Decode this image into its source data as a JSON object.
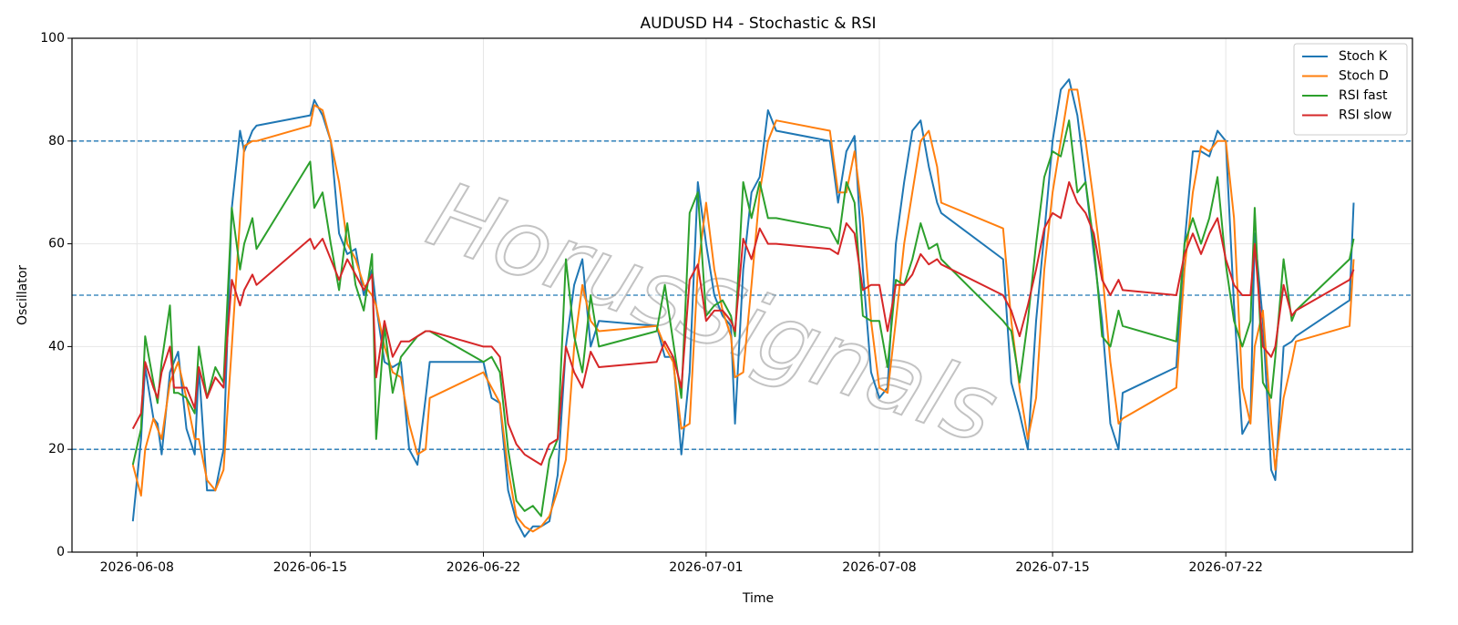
{
  "chart_data": {
    "type": "line",
    "title": "AUDUSD H4 - Stochastic & RSI",
    "xlabel": "Time",
    "ylabel": "Oscillator",
    "watermark": "HorusSignals",
    "xlim": [
      "2026-06-05T09:00",
      "2026-07-29T13:00"
    ],
    "xticks": [
      "2026-06-08",
      "2026-06-15",
      "2026-06-22",
      "2026-07-01",
      "2026-07-08",
      "2026-07-15",
      "2026-07-22"
    ],
    "ylim": [
      0,
      100
    ],
    "yticks": [
      0,
      20,
      40,
      60,
      80,
      100
    ],
    "grid": true,
    "legend": "upper right",
    "hlines": [
      20,
      50,
      80
    ],
    "hline_color": "#1f77b4",
    "x": [
      "2026-06-07T20:00",
      "2026-06-08T04:00",
      "2026-06-08T08:00",
      "2026-06-08T16:00",
      "2026-06-08T20:00",
      "2026-06-09T00:00",
      "2026-06-09T08:00",
      "2026-06-09T12:00",
      "2026-06-09T16:00",
      "2026-06-10T00:00",
      "2026-06-10T08:00",
      "2026-06-10T12:00",
      "2026-06-10T20:00",
      "2026-06-11T04:00",
      "2026-06-11T12:00",
      "2026-06-11T20:00",
      "2026-06-12T04:00",
      "2026-06-12T08:00",
      "2026-06-12T16:00",
      "2026-06-12T20:00",
      "2026-06-15T00:00",
      "2026-06-15T04:00",
      "2026-06-15T12:00",
      "2026-06-15T20:00",
      "2026-06-16T04:00",
      "2026-06-16T12:00",
      "2026-06-16T20:00",
      "2026-06-17T04:00",
      "2026-06-17T12:00",
      "2026-06-17T16:00",
      "2026-06-18T00:00",
      "2026-06-18T08:00",
      "2026-06-18T16:00",
      "2026-06-19T00:00",
      "2026-06-19T08:00",
      "2026-06-19T16:00",
      "2026-06-19T20:00",
      "2026-06-22T00:00",
      "2026-06-22T08:00",
      "2026-06-22T16:00",
      "2026-06-23T00:00",
      "2026-06-23T08:00",
      "2026-06-23T16:00",
      "2026-06-24T00:00",
      "2026-06-24T08:00",
      "2026-06-24T16:00",
      "2026-06-25T00:00",
      "2026-06-25T08:00",
      "2026-06-25T16:00",
      "2026-06-26T00:00",
      "2026-06-26T08:00",
      "2026-06-26T16:00",
      "2026-06-29T00:00",
      "2026-06-29T08:00",
      "2026-06-29T16:00",
      "2026-06-30T00:00",
      "2026-06-30T08:00",
      "2026-06-30T16:00",
      "2026-07-01T00:00",
      "2026-07-01T08:00",
      "2026-07-01T16:00",
      "2026-07-02T00:00",
      "2026-07-02T04:00",
      "2026-07-02T12:00",
      "2026-07-02T20:00",
      "2026-07-03T04:00",
      "2026-07-03T12:00",
      "2026-07-03T20:00",
      "2026-07-06T00:00",
      "2026-07-06T08:00",
      "2026-07-06T16:00",
      "2026-07-07T00:00",
      "2026-07-07T08:00",
      "2026-07-07T16:00",
      "2026-07-08T00:00",
      "2026-07-08T08:00",
      "2026-07-08T16:00",
      "2026-07-09T00:00",
      "2026-07-09T08:00",
      "2026-07-09T16:00",
      "2026-07-10T00:00",
      "2026-07-10T08:00",
      "2026-07-10T12:00",
      "2026-07-13T00:00",
      "2026-07-13T08:00",
      "2026-07-13T16:00",
      "2026-07-14T00:00",
      "2026-07-14T08:00",
      "2026-07-14T16:00",
      "2026-07-15T00:00",
      "2026-07-15T08:00",
      "2026-07-15T16:00",
      "2026-07-16T00:00",
      "2026-07-16T08:00",
      "2026-07-16T16:00",
      "2026-07-17T00:00",
      "2026-07-17T08:00",
      "2026-07-17T16:00",
      "2026-07-17T20:00",
      "2026-07-20T00:00",
      "2026-07-20T08:00",
      "2026-07-20T16:00",
      "2026-07-21T00:00",
      "2026-07-21T08:00",
      "2026-07-21T16:00",
      "2026-07-22T00:00",
      "2026-07-22T08:00",
      "2026-07-22T16:00",
      "2026-07-23T00:00",
      "2026-07-23T04:00",
      "2026-07-23T12:00",
      "2026-07-23T20:00",
      "2026-07-24T00:00",
      "2026-07-24T08:00",
      "2026-07-24T16:00",
      "2026-07-24T20:00",
      "2026-07-27T00:00",
      "2026-07-27T04:00"
    ],
    "series": [
      {
        "name": "Stoch K",
        "color": "#1f77b4",
        "values": [
          6,
          22,
          36,
          26,
          25,
          19,
          35,
          37,
          39,
          24,
          19,
          36,
          12,
          12,
          20,
          67,
          82,
          78,
          82,
          83,
          85,
          88,
          85,
          80,
          62,
          58,
          59,
          50,
          55,
          48,
          37,
          36,
          37,
          20,
          17,
          30,
          37,
          37,
          30,
          29,
          12,
          6,
          3,
          5,
          5,
          6,
          15,
          40,
          52,
          57,
          40,
          45,
          44,
          38,
          38,
          19,
          35,
          72,
          60,
          50,
          46,
          44,
          25,
          55,
          70,
          73,
          86,
          82,
          80,
          68,
          78,
          81,
          55,
          35,
          30,
          32,
          60,
          72,
          82,
          84,
          75,
          68,
          66,
          57,
          33,
          27,
          20,
          45,
          62,
          80,
          90,
          92,
          85,
          72,
          58,
          45,
          25,
          20,
          31,
          36,
          60,
          78,
          78,
          77,
          82,
          80,
          48,
          23,
          26,
          62,
          45,
          16,
          14,
          40,
          41,
          42,
          49,
          68
        ]
      },
      {
        "name": "Stoch D",
        "color": "#ff7f0e",
        "values": [
          17,
          11,
          20,
          26,
          24,
          22,
          33,
          35,
          37,
          30,
          22,
          22,
          14,
          12,
          16,
          40,
          65,
          79,
          80,
          80,
          83,
          87,
          86,
          80,
          72,
          60,
          57,
          52,
          50,
          48,
          40,
          35,
          34,
          25,
          19,
          20,
          30,
          35,
          32,
          29,
          16,
          7,
          5,
          4,
          5,
          7,
          12,
          18,
          40,
          52,
          45,
          43,
          44,
          40,
          37,
          24,
          25,
          55,
          68,
          55,
          47,
          42,
          34,
          35,
          52,
          70,
          80,
          84,
          82,
          70,
          70,
          78,
          65,
          45,
          32,
          31,
          45,
          60,
          70,
          80,
          82,
          75,
          68,
          63,
          45,
          32,
          22,
          30,
          55,
          70,
          80,
          90,
          90,
          80,
          68,
          55,
          37,
          25,
          26,
          32,
          55,
          70,
          79,
          78,
          80,
          80,
          65,
          32,
          25,
          40,
          47,
          25,
          16,
          30,
          37,
          41,
          44,
          57
        ]
      },
      {
        "name": "RSI fast",
        "color": "#2ca02c",
        "values": [
          17,
          24,
          42,
          33,
          29,
          37,
          48,
          31,
          31,
          30,
          27,
          40,
          30,
          36,
          33,
          67,
          55,
          60,
          65,
          59,
          76,
          67,
          70,
          60,
          51,
          64,
          52,
          47,
          58,
          22,
          44,
          31,
          38,
          40,
          42,
          43,
          43,
          37,
          38,
          35,
          20,
          10,
          8,
          9,
          7,
          18,
          22,
          57,
          42,
          35,
          50,
          40,
          43,
          52,
          41,
          30,
          66,
          70,
          46,
          48,
          49,
          46,
          42,
          72,
          65,
          72,
          65,
          65,
          63,
          60,
          72,
          68,
          46,
          45,
          45,
          36,
          53,
          52,
          57,
          64,
          59,
          60,
          57,
          45,
          43,
          33,
          45,
          60,
          73,
          78,
          77,
          84,
          70,
          72,
          60,
          42,
          40,
          47,
          44,
          41,
          60,
          65,
          60,
          65,
          73,
          56,
          45,
          40,
          45,
          67,
          33,
          30,
          38,
          57,
          45,
          47,
          57,
          61
        ]
      },
      {
        "name": "RSI slow",
        "color": "#d62728",
        "values": [
          24,
          27,
          37,
          32,
          30,
          35,
          40,
          32,
          32,
          32,
          28,
          36,
          30,
          34,
          32,
          53,
          48,
          51,
          54,
          52,
          61,
          59,
          61,
          57,
          53,
          57,
          54,
          51,
          54,
          34,
          45,
          38,
          41,
          41,
          42,
          43,
          43,
          40,
          40,
          38,
          25,
          21,
          19,
          18,
          17,
          21,
          22,
          40,
          35,
          32,
          39,
          36,
          37,
          41,
          38,
          32,
          53,
          56,
          45,
          47,
          47,
          45,
          43,
          61,
          57,
          63,
          60,
          60,
          59,
          58,
          64,
          62,
          51,
          52,
          52,
          43,
          52,
          52,
          54,
          58,
          56,
          57,
          56,
          50,
          47,
          42,
          48,
          55,
          63,
          66,
          65,
          72,
          68,
          66,
          62,
          53,
          50,
          53,
          51,
          50,
          58,
          62,
          58,
          62,
          65,
          57,
          52,
          50,
          50,
          60,
          40,
          38,
          40,
          52,
          46,
          47,
          53,
          55
        ]
      }
    ]
  }
}
